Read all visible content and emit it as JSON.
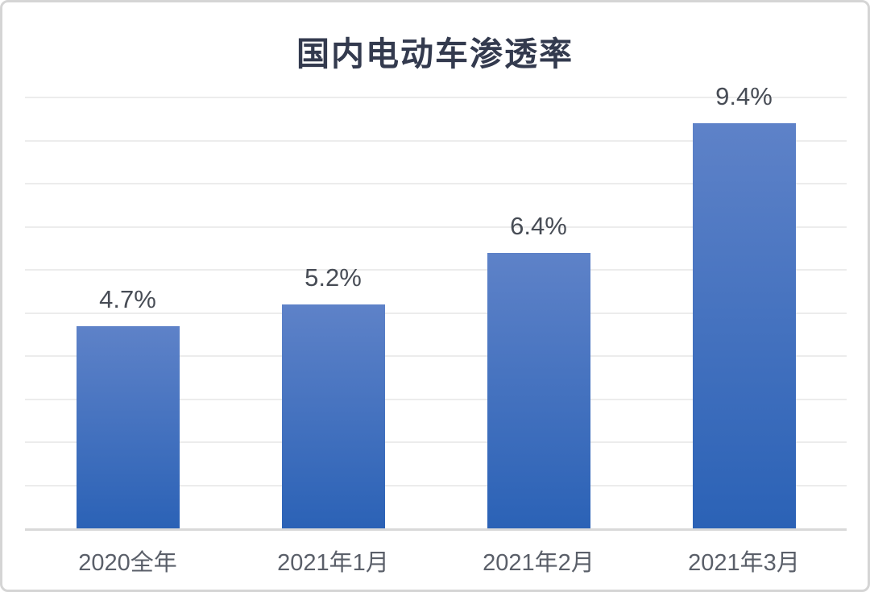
{
  "page": {
    "background": "#ffffff",
    "card_border_color": "#d5d5d5"
  },
  "chart_data": {
    "type": "bar",
    "title": "国内电动车渗透率",
    "categories": [
      "2020全年",
      "2021年1月",
      "2021年2月",
      "2021年3月"
    ],
    "values": [
      4.7,
      5.2,
      6.4,
      9.4
    ],
    "value_labels": [
      "4.7%",
      "5.2%",
      "6.4%",
      "9.4%"
    ],
    "xlabel": "",
    "ylabel": "",
    "ylim": [
      0,
      10
    ],
    "gridline_step": 1,
    "grid": "horizontal",
    "legend": "none",
    "y_tick_labels_visible": false,
    "bar_color_top": "#5e82c8",
    "bar_color_bottom": "#2b62b6",
    "title_color": "#333a4e",
    "value_label_color": "#474c55",
    "axis_label_color": "#5a5f69",
    "gridline_color": "#ececec",
    "axis_line_color": "#d9d9d9"
  }
}
